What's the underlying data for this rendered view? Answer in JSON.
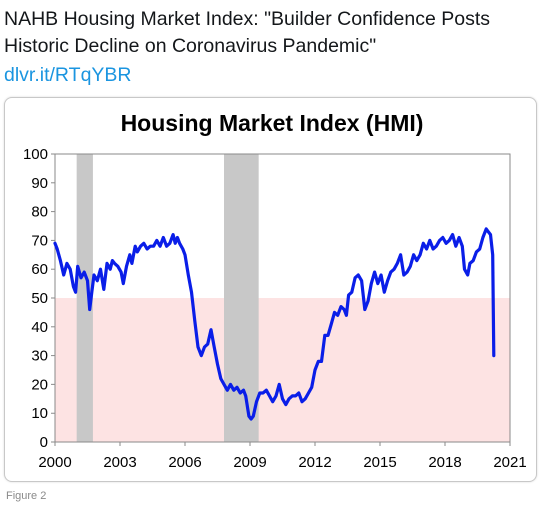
{
  "tweet": {
    "text": "NAHB Housing Market Index: \"Builder Confidence Posts Historic Decline on Coronavirus Pandemic\"",
    "link": "dlvr.it/RTqYBR"
  },
  "caption": "Figure 2",
  "colors": {
    "line": "#0a1ee8",
    "recession": "#c8c8c8",
    "below_50_zone": "#fde3e3",
    "link": "#1b95e0"
  },
  "chart_data": {
    "type": "line",
    "title": "Housing Market Index (HMI)",
    "xlabel": "",
    "ylabel": "",
    "xlim": [
      2000,
      2021
    ],
    "ylim": [
      0,
      100
    ],
    "x_ticks": [
      "2000",
      "2003",
      "2006",
      "2009",
      "2012",
      "2015",
      "2018",
      "2021"
    ],
    "y_ticks": [
      "0",
      "10",
      "20",
      "30",
      "40",
      "50",
      "60",
      "70",
      "80",
      "90",
      "100"
    ],
    "grid": false,
    "legend": "none",
    "shaded_threshold": 50,
    "recessions": [
      [
        2001.0,
        2001.75
      ],
      [
        2007.8,
        2009.4
      ]
    ],
    "series": [
      {
        "x": [
          2000.0,
          2000.1,
          2000.25,
          2000.4,
          2000.55,
          2000.7,
          2000.85,
          2000.95,
          2001.05,
          2001.2,
          2001.35,
          2001.5,
          2001.6,
          2001.7,
          2001.8,
          2001.95,
          2002.1,
          2002.25,
          2002.4,
          2002.55,
          2002.65,
          2002.75,
          2002.9,
          2003.05,
          2003.15,
          2003.3,
          2003.45,
          2003.55,
          2003.7,
          2003.8,
          2003.95,
          2004.1,
          2004.25,
          2004.4,
          2004.55,
          2004.7,
          2004.85,
          2005.0,
          2005.15,
          2005.3,
          2005.45,
          2005.55,
          2005.65,
          2005.75,
          2005.9,
          2006.0,
          2006.15,
          2006.3,
          2006.45,
          2006.6,
          2006.75,
          2006.9,
          2007.05,
          2007.2,
          2007.35,
          2007.5,
          2007.65,
          2007.8,
          2007.95,
          2008.1,
          2008.25,
          2008.4,
          2008.55,
          2008.7,
          2008.8,
          2008.95,
          2009.05,
          2009.15,
          2009.3,
          2009.45,
          2009.6,
          2009.75,
          2009.9,
          2010.05,
          2010.2,
          2010.35,
          2010.5,
          2010.65,
          2010.8,
          2010.95,
          2011.1,
          2011.25,
          2011.4,
          2011.55,
          2011.7,
          2011.85,
          2012.0,
          2012.15,
          2012.3,
          2012.45,
          2012.6,
          2012.75,
          2012.9,
          2013.05,
          2013.2,
          2013.35,
          2013.45,
          2013.55,
          2013.7,
          2013.85,
          2014.0,
          2014.15,
          2014.3,
          2014.45,
          2014.6,
          2014.75,
          2014.9,
          2015.05,
          2015.2,
          2015.35,
          2015.5,
          2015.65,
          2015.8,
          2015.95,
          2016.1,
          2016.25,
          2016.4,
          2016.55,
          2016.7,
          2016.85,
          2017.0,
          2017.15,
          2017.3,
          2017.45,
          2017.6,
          2017.75,
          2017.9,
          2018.05,
          2018.2,
          2018.35,
          2018.5,
          2018.65,
          2018.8,
          2018.9,
          2019.05,
          2019.15,
          2019.3,
          2019.45,
          2019.6,
          2019.75,
          2019.9,
          2020.0,
          2020.1,
          2020.2,
          2020.25
        ],
        "y": [
          69,
          67,
          63,
          58,
          62,
          60,
          54,
          52,
          61,
          57,
          59,
          56,
          46,
          52,
          58,
          56,
          60,
          53,
          62,
          60,
          63,
          62,
          61,
          59,
          55,
          61,
          65,
          62,
          68,
          66,
          68,
          69,
          67,
          68,
          68,
          70,
          68,
          71,
          68,
          69,
          72,
          69,
          71,
          69,
          67,
          65,
          58,
          52,
          42,
          33,
          30,
          33,
          34,
          39,
          33,
          27,
          22,
          20,
          18,
          20,
          18,
          19,
          17,
          18,
          16,
          9,
          8,
          9,
          14,
          17,
          17,
          18,
          16,
          14,
          16,
          20,
          15,
          13,
          15,
          16,
          16,
          17,
          14,
          15,
          17,
          19,
          25,
          28,
          28,
          37,
          37,
          41,
          45,
          44,
          47,
          46,
          44,
          51,
          52,
          57,
          58,
          56,
          46,
          49,
          55,
          59,
          55,
          58,
          52,
          56,
          59,
          60,
          62,
          65,
          58,
          59,
          61,
          65,
          63,
          65,
          69,
          67,
          70,
          67,
          68,
          70,
          71,
          69,
          70,
          72,
          68,
          71,
          68,
          60,
          58,
          62,
          63,
          66,
          67,
          71,
          74,
          73,
          72,
          65,
          30
        ]
      }
    ]
  }
}
